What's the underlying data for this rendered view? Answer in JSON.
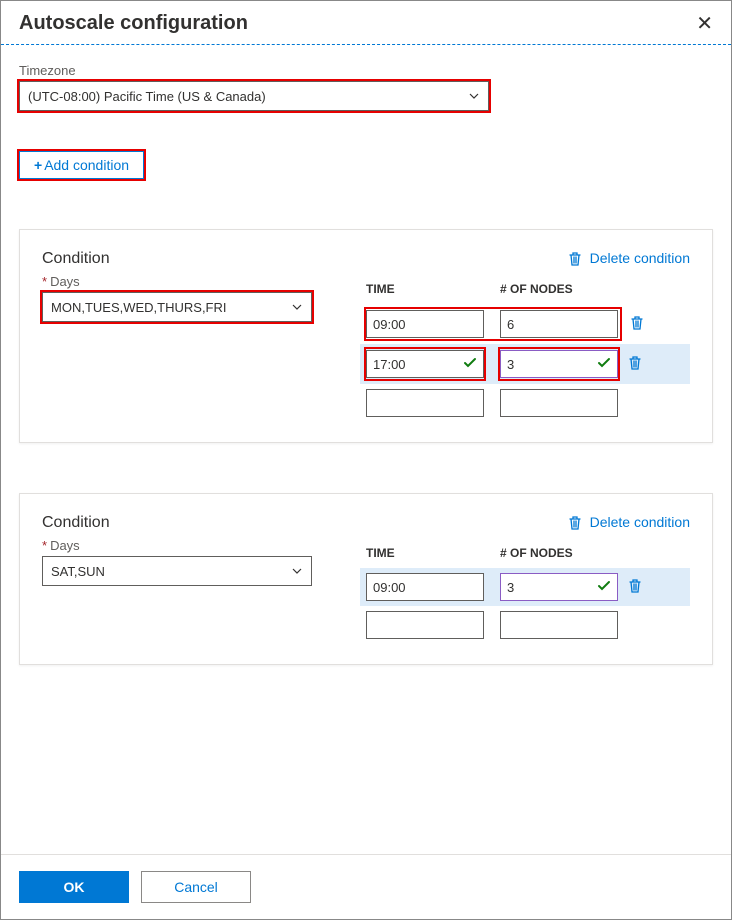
{
  "header": {
    "title": "Autoscale configuration"
  },
  "timezone": {
    "label": "Timezone",
    "value": "(UTC-08:00) Pacific Time (US & Canada)"
  },
  "addCondition": {
    "label": "Add condition",
    "plus": "+"
  },
  "conditions": [
    {
      "title": "Condition",
      "deleteLabel": "Delete condition",
      "daysLabel": "Days",
      "daysValue": "MON,TUES,WED,THURS,FRI",
      "daysHighlighted": true,
      "tableHeaders": {
        "time": "TIME",
        "nodes": "# OF NODES"
      },
      "rows": [
        {
          "time": "09:00",
          "nodes": "6",
          "timeCheck": false,
          "nodesCheck": false,
          "highlighted": false,
          "redOutline": "wide",
          "trash": true
        },
        {
          "time": "17:00",
          "nodes": "3",
          "timeCheck": true,
          "nodesCheck": true,
          "highlighted": true,
          "redOutline": "cells",
          "trash": true,
          "nodesPurple": true
        },
        {
          "time": "",
          "nodes": "",
          "timeCheck": false,
          "nodesCheck": false,
          "highlighted": false,
          "redOutline": "none",
          "trash": false
        }
      ]
    },
    {
      "title": "Condition",
      "deleteLabel": "Delete condition",
      "daysLabel": "Days",
      "daysValue": "SAT,SUN",
      "daysHighlighted": false,
      "tableHeaders": {
        "time": "TIME",
        "nodes": "# OF NODES"
      },
      "rows": [
        {
          "time": "09:00",
          "nodes": "3",
          "timeCheck": false,
          "nodesCheck": true,
          "highlighted": true,
          "redOutline": "none",
          "trash": true,
          "nodesPurple": true
        },
        {
          "time": "",
          "nodes": "",
          "timeCheck": false,
          "nodesCheck": false,
          "highlighted": false,
          "redOutline": "none",
          "trash": false
        }
      ]
    }
  ],
  "footer": {
    "ok": "OK",
    "cancel": "Cancel"
  },
  "colors": {
    "accent": "#0078d4",
    "redOutline": "#e60000",
    "green": "#107c10",
    "purple": "#8a5cc4",
    "rowHighlight": "#deecf9"
  }
}
